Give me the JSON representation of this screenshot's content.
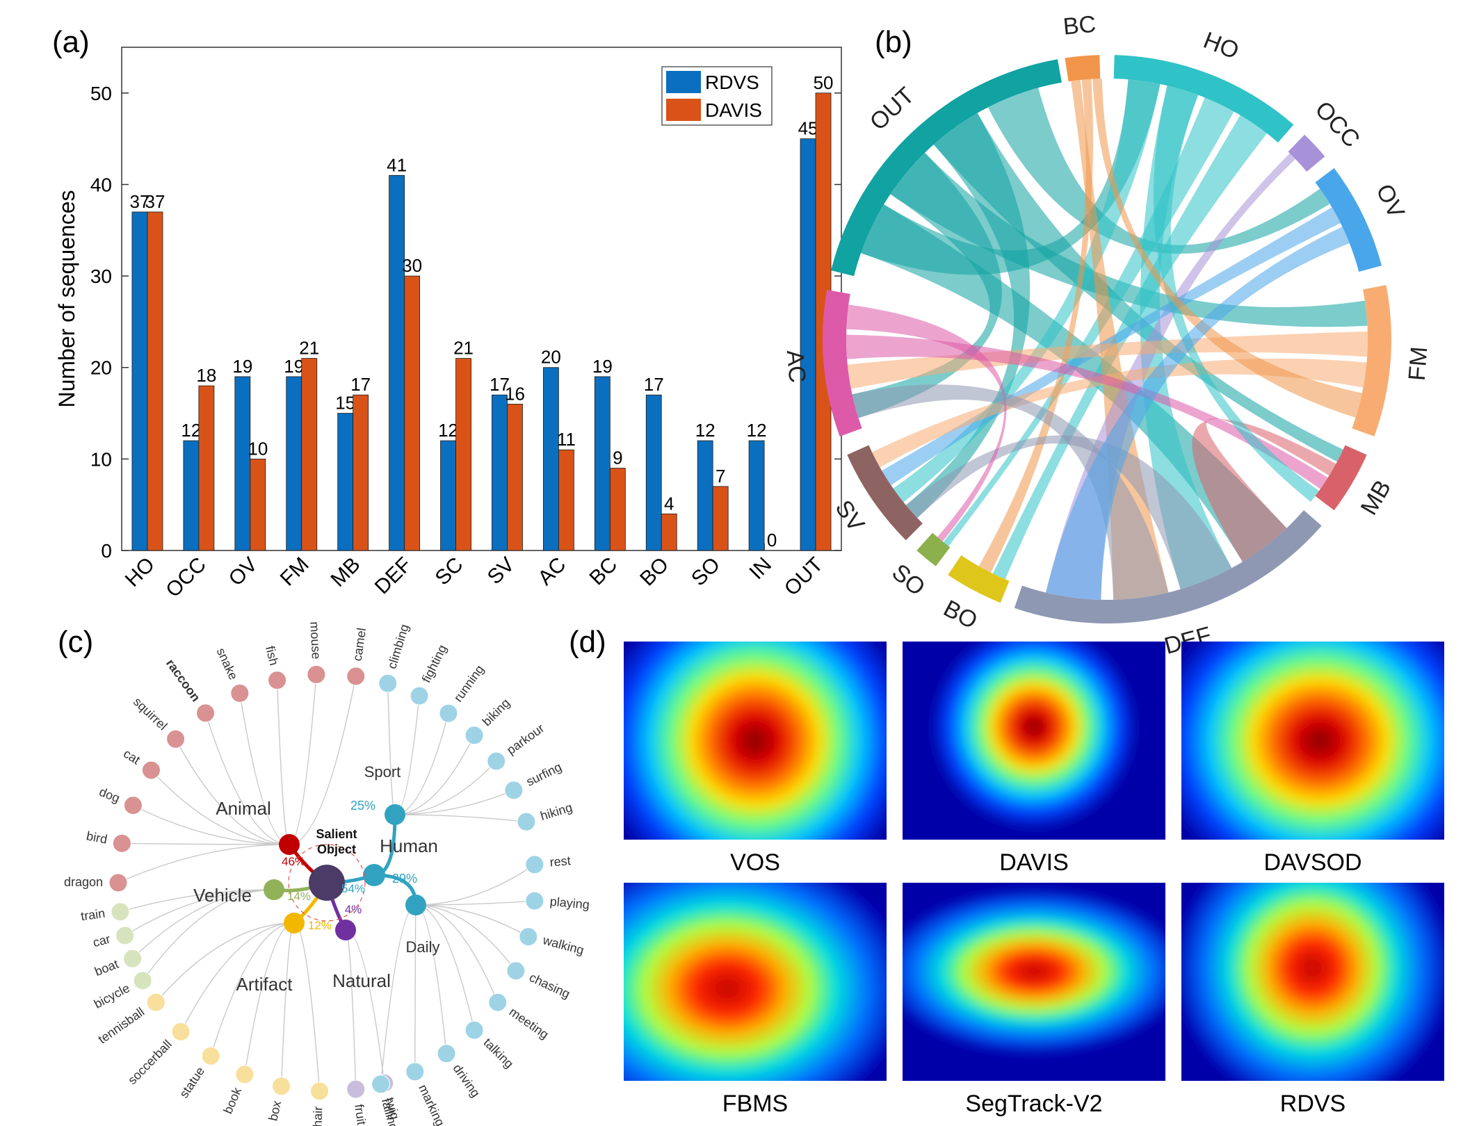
{
  "panels": {
    "a": "(a)",
    "b": "(b)",
    "c": "(c)",
    "d": "(d)"
  },
  "colors": {
    "rdvs": "#0b6fbf",
    "davis": "#d95319"
  },
  "chart_data": [
    {
      "type": "bar",
      "panel": "(a)",
      "ylabel": "Number of sequences",
      "ylim": [
        0,
        55
      ],
      "yticks": [
        0,
        10,
        20,
        30,
        40,
        50
      ],
      "categories": [
        "HO",
        "OCC",
        "OV",
        "FM",
        "MB",
        "DEF",
        "SC",
        "SV",
        "AC",
        "BC",
        "BO",
        "SO",
        "IN",
        "OUT"
      ],
      "series": [
        {
          "name": "RDVS",
          "values": [
            37,
            12,
            19,
            19,
            15,
            41,
            12,
            17,
            20,
            19,
            17,
            12,
            12,
            45
          ]
        },
        {
          "name": "DAVIS",
          "values": [
            37,
            18,
            10,
            21,
            17,
            30,
            21,
            16,
            11,
            9,
            4,
            7,
            0,
            50
          ]
        }
      ],
      "legend": "top-right",
      "grid": false
    },
    {
      "type": "chord",
      "panel": "(b)",
      "segments": [
        {
          "label": "BC",
          "color": "#f0954a"
        },
        {
          "label": "HO",
          "color": "#2fc2c6"
        },
        {
          "label": "OCC",
          "color": "#a791d9"
        },
        {
          "label": "OV",
          "color": "#4aa6ea"
        },
        {
          "label": "FM",
          "color": "#f8ac72"
        },
        {
          "label": "MB",
          "color": "#d9616a"
        },
        {
          "label": "DEF",
          "color": "#8e98b3"
        },
        {
          "label": "BO",
          "color": "#dfc61b"
        },
        {
          "label": "SO",
          "color": "#8bb04c"
        },
        {
          "label": "SV",
          "color": "#8e6462"
        },
        {
          "label": "AC",
          "color": "#dd5aa8"
        },
        {
          "label": "OUT",
          "color": "#11a2a2"
        }
      ],
      "links": [
        [
          "OUT",
          "HO"
        ],
        [
          "OUT",
          "FM"
        ],
        [
          "OUT",
          "MB"
        ],
        [
          "OUT",
          "OV"
        ],
        [
          "OUT",
          "DEF"
        ],
        [
          "OUT",
          "AC"
        ],
        [
          "OUT",
          "SV"
        ],
        [
          "HO",
          "DEF"
        ],
        [
          "HO",
          "SO"
        ],
        [
          "HO",
          "BO"
        ],
        [
          "HO",
          "SV"
        ],
        [
          "BC",
          "DEF"
        ],
        [
          "BC",
          "BO"
        ],
        [
          "OCC",
          "DEF"
        ],
        [
          "OV",
          "SV"
        ],
        [
          "FM",
          "AC"
        ],
        [
          "FM",
          "SV"
        ],
        [
          "MB",
          "DEF"
        ],
        [
          "AC",
          "MB"
        ],
        [
          "DEF",
          "SV"
        ],
        [
          "AC",
          "SO"
        ],
        [
          "HO",
          "MB"
        ],
        [
          "BC",
          "FM"
        ],
        [
          "DEF",
          "AC"
        ],
        [
          "OV",
          "DEF"
        ]
      ]
    },
    {
      "type": "tree",
      "panel": "(c)",
      "root": "Salient Object",
      "groups": [
        {
          "name": "Animal",
          "share": "46%",
          "color": "#c00000",
          "leaf_color": "#d99191",
          "leaves": [
            "camel",
            "mouse",
            "fish",
            "snake",
            "raccoon",
            "squirrel",
            "cat",
            "dog",
            "bird",
            "dragon"
          ]
        },
        {
          "name": "Vehicle",
          "share": "14%",
          "color": "#92b259",
          "leaf_color": "#d7e3bd",
          "leaves": [
            "train",
            "car",
            "boat",
            "bicycle"
          ]
        },
        {
          "name": "Artifact",
          "share": "12%",
          "color": "#f2b700",
          "leaf_color": "#f8df9b",
          "leaves": [
            "tennisball",
            "soccerball",
            "statue",
            "book",
            "box",
            "chair"
          ]
        },
        {
          "name": "Natural",
          "share": "4%",
          "color": "#7030a0",
          "leaf_color": "#c9bcdc",
          "leaves": [
            "fruit",
            "twig"
          ]
        },
        {
          "name": "Human",
          "share": "54%",
          "color": "#31a3c1",
          "leaf_color": "#9ed3e6",
          "subgroups": [
            {
              "name": "Sport",
              "share": "25%",
              "leaves": [
                "climbing",
                "fighting",
                "running",
                "biking",
                "parkour",
                "surfing",
                "hiking"
              ]
            },
            {
              "name": "Daily",
              "share": "29%",
              "leaves": [
                "rest",
                "playing",
                "walking",
                "chasing",
                "meeting",
                "talking",
                "driving",
                "marking",
                "falling"
              ]
            }
          ]
        }
      ]
    },
    {
      "type": "heatmap",
      "panel": "(d)",
      "datasets": [
        "VOS",
        "DAVIS",
        "DAVSOD",
        "FBMS",
        "SegTrack-V2",
        "RDVS"
      ]
    }
  ]
}
